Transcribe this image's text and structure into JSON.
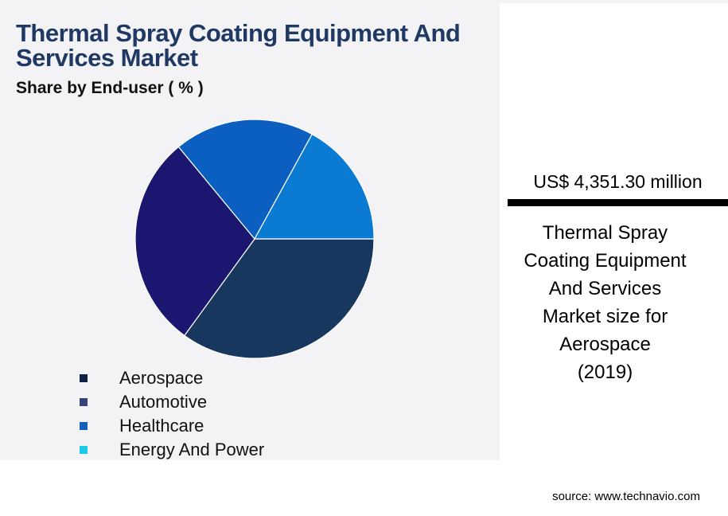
{
  "chart_data": {
    "type": "pie",
    "title": "Thermal Spray Coating Equipment And Services Market",
    "subtitle": "Share by End-user ( % )",
    "categories": [
      "Aerospace",
      "Automotive",
      "Healthcare",
      "Energy And Power"
    ],
    "values": [
      35,
      29,
      19,
      17
    ],
    "colors": [
      "#18375f",
      "#1b1670",
      "#0a5fc0",
      "#0a7ad2"
    ],
    "legend_colors": [
      "#0f2346",
      "#35437a",
      "#1560bd",
      "#1ec8e6"
    ]
  },
  "highlight": {
    "value": "US$ 4,351.30 million",
    "description_lines": [
      "Thermal Spray",
      "Coating Equipment",
      "And Services",
      "Market size for",
      "Aerospace",
      "(2019)"
    ]
  },
  "source": "source: www.technavio.com"
}
